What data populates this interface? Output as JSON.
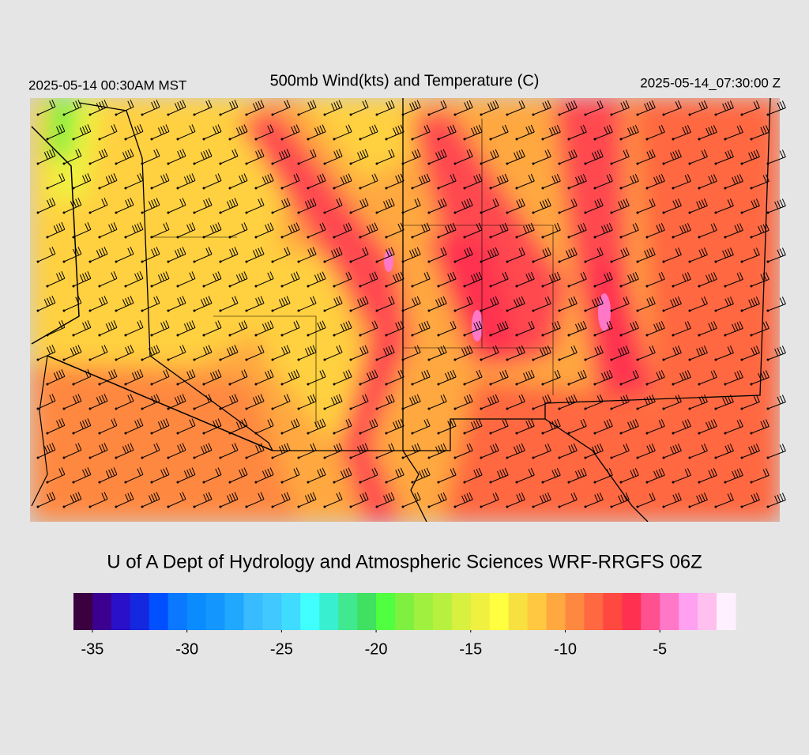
{
  "header": {
    "left_time": "2025-05-14 00:30AM MST",
    "title": "500mb Wind(kts) and Temperature (C)",
    "right_time": "2025-05-14_07:30:00 Z"
  },
  "credit": "U of A Dept of Hydrology and Atmospheric Sciences WRF-RRGFS 06Z",
  "colorbar": {
    "range": [
      -36,
      -1
    ],
    "ticks": [
      -35,
      -30,
      -25,
      -20,
      -15,
      -10,
      -5
    ],
    "colors": [
      "#3a0040",
      "#3c0090",
      "#2a10c8",
      "#1428e0",
      "#0050ff",
      "#0a78ff",
      "#0a8cff",
      "#1496ff",
      "#20a8ff",
      "#38bcff",
      "#40c8ff",
      "#40dcff",
      "#40ffff",
      "#38f0d0",
      "#40e890",
      "#40e060",
      "#50ff40",
      "#80f040",
      "#a0f040",
      "#b8f040",
      "#d8f040",
      "#f0f040",
      "#ffff40",
      "#f8e040",
      "#ffc840",
      "#ffa840",
      "#ff8840",
      "#ff6840",
      "#ff4840",
      "#ff3050",
      "#ff5090",
      "#ff78c8",
      "#ffa0f0",
      "#ffc0f0",
      "#fff0ff"
    ]
  }
}
